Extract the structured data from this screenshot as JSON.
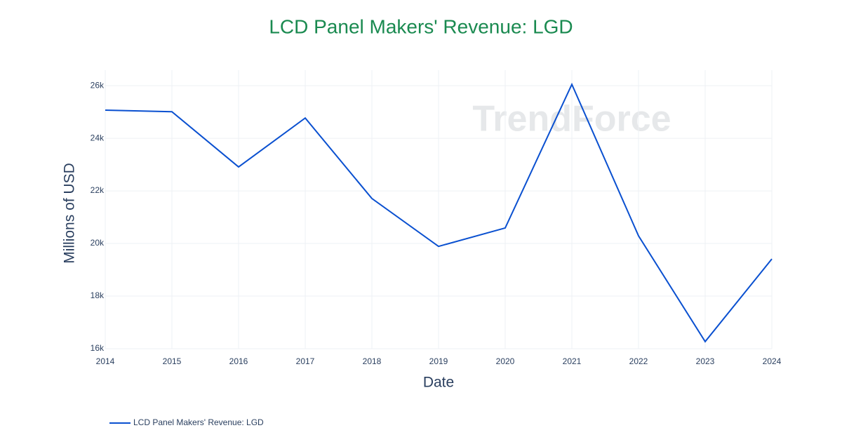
{
  "chart_data": {
    "type": "line",
    "title": "LCD Panel Makers' Revenue: LGD",
    "x_label": "Date",
    "y_label": "Millions of USD",
    "watermark": "TrendForce",
    "x": [
      2014,
      2015,
      2016,
      2017,
      2018,
      2019,
      2020,
      2021,
      2022,
      2023,
      2024
    ],
    "series": [
      {
        "name": "LCD Panel Makers' Revenue: LGD",
        "color": "#0a50d0",
        "values": [
          25070,
          25010,
          22910,
          24770,
          21710,
          19890,
          20590,
          26050,
          20290,
          16270,
          19410
        ]
      }
    ],
    "xlim": [
      2014,
      2024
    ],
    "xticks": [
      2014,
      2015,
      2016,
      2017,
      2018,
      2019,
      2020,
      2021,
      2022,
      2023,
      2024
    ],
    "ylim": [
      16000,
      26590
    ],
    "yticks": [
      {
        "value": 16000,
        "label": "16k"
      },
      {
        "value": 18000,
        "label": "18k"
      },
      {
        "value": 20000,
        "label": "20k"
      },
      {
        "value": 22000,
        "label": "22k"
      },
      {
        "value": 24000,
        "label": "24k"
      },
      {
        "value": 26000,
        "label": "26k"
      }
    ],
    "grid": true,
    "legend": "bottom-left"
  }
}
